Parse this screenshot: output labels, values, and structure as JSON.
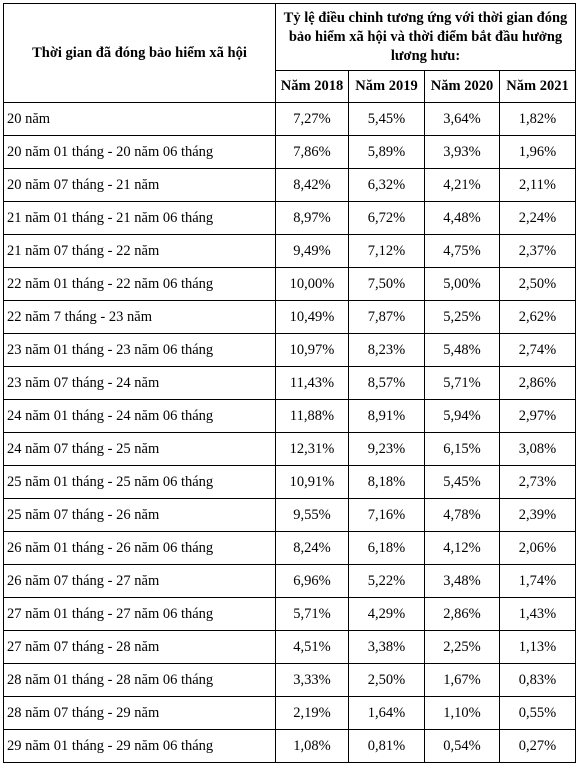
{
  "header": {
    "period_label": "Thời gian đã đóng bảo hiểm xã hội",
    "group_label": "Tỷ lệ điều chỉnh tương ứng với thời gian đóng bảo hiểm xã hội và thời điểm bắt đầu hưởng lương hưu:",
    "years": [
      "Năm 2018",
      "Năm 2019",
      "Năm 2020",
      "Năm 2021"
    ]
  },
  "rows": [
    {
      "period": "20 năm",
      "values": [
        "7,27%",
        "5,45%",
        "3,64%",
        "1,82%"
      ]
    },
    {
      "period": "20 năm 01 tháng - 20 năm 06 tháng",
      "values": [
        "7,86%",
        "5,89%",
        "3,93%",
        "1,96%"
      ]
    },
    {
      "period": "20 năm 07 tháng - 21 năm",
      "values": [
        "8,42%",
        "6,32%",
        "4,21%",
        "2,11%"
      ]
    },
    {
      "period": "21 năm 01 tháng - 21 năm 06 tháng",
      "values": [
        "8,97%",
        "6,72%",
        "4,48%",
        "2,24%"
      ]
    },
    {
      "period": "21 năm 07 tháng - 22 năm",
      "values": [
        "9,49%",
        "7,12%",
        "4,75%",
        "2,37%"
      ]
    },
    {
      "period": "22 năm 01 tháng - 22 năm 06 tháng",
      "values": [
        "10,00%",
        "7,50%",
        "5,00%",
        "2,50%"
      ]
    },
    {
      "period": "22 năm 7 tháng - 23 năm",
      "values": [
        "10,49%",
        "7,87%",
        "5,25%",
        "2,62%"
      ]
    },
    {
      "period": "23 năm 01 tháng - 23 năm 06 tháng",
      "values": [
        "10,97%",
        "8,23%",
        "5,48%",
        "2,74%"
      ]
    },
    {
      "period": "23 năm 07 tháng - 24 năm",
      "values": [
        "11,43%",
        "8,57%",
        "5,71%",
        "2,86%"
      ]
    },
    {
      "period": "24 năm 01 tháng - 24 năm 06 tháng",
      "values": [
        "11,88%",
        "8,91%",
        "5,94%",
        "2,97%"
      ]
    },
    {
      "period": "24 năm 07 tháng - 25 năm",
      "values": [
        "12,31%",
        "9,23%",
        "6,15%",
        "3,08%"
      ]
    },
    {
      "period": "25 năm 01 tháng - 25 năm 06 tháng",
      "values": [
        "10,91%",
        "8,18%",
        "5,45%",
        "2,73%"
      ]
    },
    {
      "period": "25 năm 07 tháng - 26 năm",
      "values": [
        "9,55%",
        "7,16%",
        "4,78%",
        "2,39%"
      ]
    },
    {
      "period": "26 năm 01 tháng - 26 năm 06 tháng",
      "values": [
        "8,24%",
        "6,18%",
        "4,12%",
        "2,06%"
      ]
    },
    {
      "period": "26 năm 07 tháng - 27 năm",
      "values": [
        "6,96%",
        "5,22%",
        "3,48%",
        "1,74%"
      ]
    },
    {
      "period": "27 năm 01 tháng - 27 năm 06 tháng",
      "values": [
        "5,71%",
        "4,29%",
        "2,86%",
        "1,43%"
      ]
    },
    {
      "period": "27 năm 07 tháng - 28 năm",
      "values": [
        "4,51%",
        "3,38%",
        "2,25%",
        "1,13%"
      ]
    },
    {
      "period": "28 năm 01 tháng - 28 năm 06 tháng",
      "values": [
        "3,33%",
        "2,50%",
        "1,67%",
        "0,83%"
      ]
    },
    {
      "period": "28 năm 07 tháng - 29 năm",
      "values": [
        "2,19%",
        "1,64%",
        "1,10%",
        "0,55%"
      ]
    },
    {
      "period": "29 năm 01 tháng - 29 năm 06 tháng",
      "values": [
        "1,08%",
        "0,81%",
        "0,54%",
        "0,27%"
      ]
    }
  ]
}
